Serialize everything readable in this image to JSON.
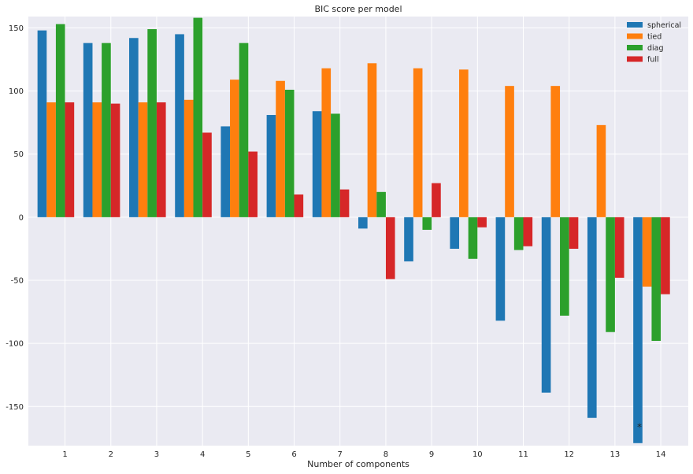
{
  "chart_data": {
    "type": "bar",
    "title": "BIC score per model",
    "xlabel": "Number of components",
    "ylabel": "",
    "categories": [
      "1",
      "2",
      "3",
      "4",
      "5",
      "6",
      "7",
      "8",
      "9",
      "10",
      "11",
      "12",
      "13",
      "14"
    ],
    "series": [
      {
        "name": "spherical",
        "color": "#1f77b4",
        "values": [
          148,
          138,
          142,
          145,
          72,
          81,
          84,
          -9,
          -35,
          -25,
          -82,
          -139,
          -159,
          -179
        ]
      },
      {
        "name": "tied",
        "color": "#ff7f0e",
        "values": [
          91,
          91,
          91,
          93,
          109,
          108,
          118,
          122,
          118,
          117,
          104,
          104,
          73,
          -55
        ]
      },
      {
        "name": "diag",
        "color": "#2ca02c",
        "values": [
          153,
          138,
          149,
          158,
          138,
          101,
          82,
          20,
          -10,
          -33,
          -26,
          -78,
          -91,
          -98
        ]
      },
      {
        "name": "full",
        "color": "#d62728",
        "values": [
          91,
          90,
          91,
          67,
          52,
          18,
          22,
          -49,
          27,
          -8,
          -23,
          -25,
          -48,
          -61
        ]
      }
    ],
    "yticks": [
      -150,
      -100,
      -50,
      0,
      50,
      100,
      150
    ],
    "ylim": [
      -181,
      159
    ],
    "grid": true,
    "legend_position": "top-right",
    "annotation": {
      "text": "*",
      "category": "14",
      "series": "spherical",
      "y": -165
    }
  }
}
